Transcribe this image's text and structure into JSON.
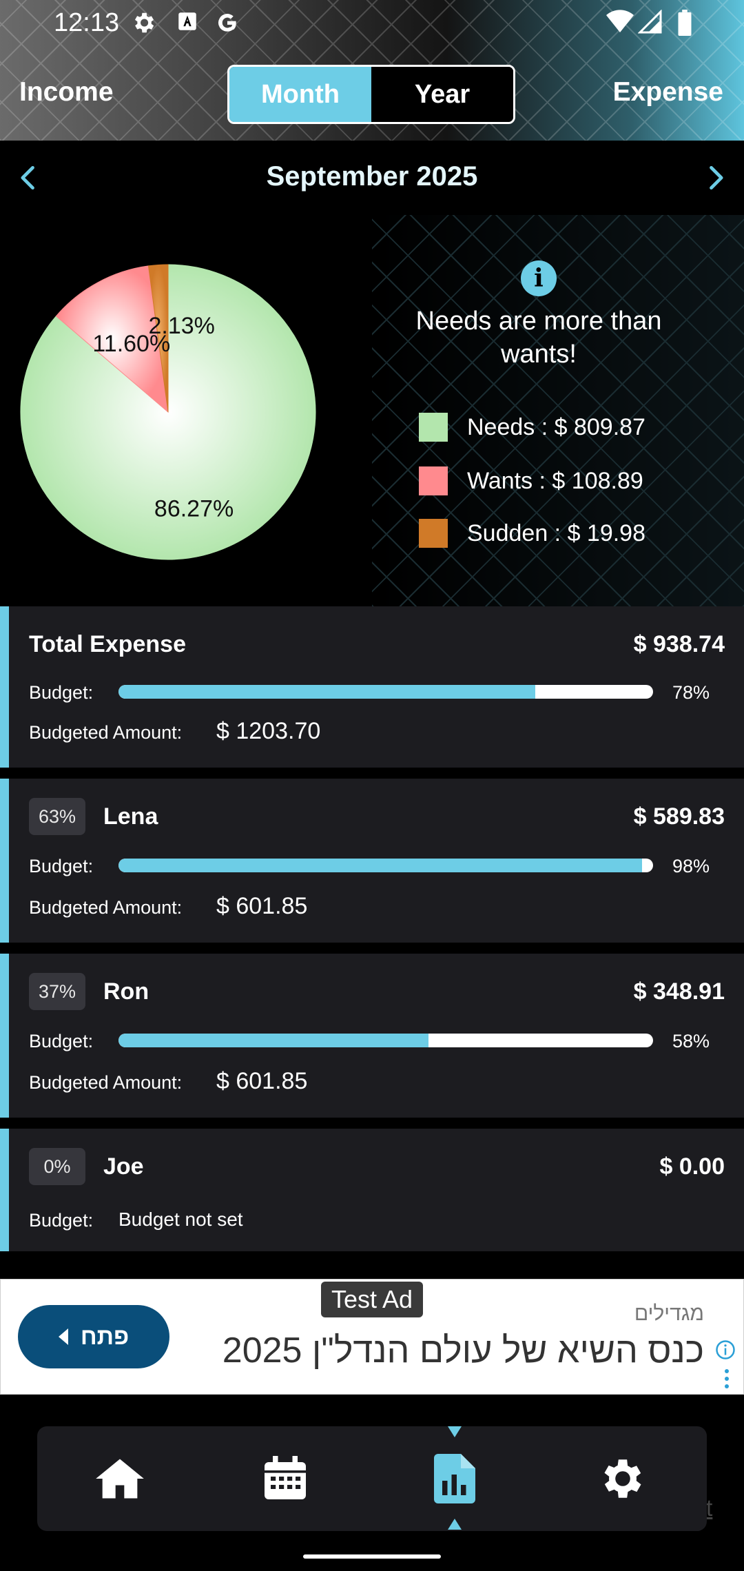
{
  "status_bar": {
    "time": "12:13"
  },
  "header": {
    "income_label": "Income",
    "expense_label": "Expense",
    "toggle": {
      "month": "Month",
      "year": "Year",
      "selected": "Month"
    }
  },
  "period": {
    "label": "September 2025"
  },
  "colors": {
    "accent": "#6dcde6",
    "needs": "#b3e6ad",
    "wants": "#ff8a8e",
    "sudden": "#d07a28"
  },
  "summary": {
    "insight": "Needs are more than wants!",
    "legend": [
      {
        "label": "Needs : $ 809.87",
        "color": "#b3e6ad"
      },
      {
        "label": "Wants : $ 108.89",
        "color": "#ff8a8e"
      },
      {
        "label": "Sudden : $ 19.98",
        "color": "#d07a28"
      }
    ]
  },
  "chart_data": {
    "type": "pie",
    "categories": [
      "Needs",
      "Wants",
      "Sudden"
    ],
    "values": [
      86.27,
      11.6,
      2.13
    ],
    "labels": [
      "86.27%",
      "11.60%",
      "2.13%"
    ],
    "colors": [
      "#b3e6ad",
      "#ff8a8e",
      "#d07a28"
    ]
  },
  "total": {
    "title": "Total Expense",
    "amount": "$ 938.74",
    "budget_label": "Budget:",
    "percent_text": "78%",
    "percent": 0.78,
    "budgeted_label": "Budgeted Amount:",
    "budgeted_amount": "$ 1203.70"
  },
  "members": [
    {
      "badge": "63%",
      "name": "Lena",
      "amount": "$ 589.83",
      "budget_label": "Budget:",
      "percent_text": "98%",
      "percent": 0.98,
      "budgeted_label": "Budgeted Amount:",
      "budgeted_amount": "$ 601.85"
    },
    {
      "badge": "37%",
      "name": "Ron",
      "amount": "$ 348.91",
      "budget_label": "Budget:",
      "percent_text": "58%",
      "percent": 0.58,
      "budgeted_label": "Budgeted Amount:",
      "budgeted_amount": "$ 601.85"
    },
    {
      "badge": "0%",
      "name": "Joe",
      "amount": "$ 0.00",
      "budget_label": "Budget:",
      "budget_status": "Budget not set"
    }
  ],
  "ad": {
    "badge": "Test Ad",
    "button": "פתח",
    "advertiser": "מגדילים",
    "headline": "כנס השיא של עולם הנדל\"ן 2025"
  },
  "nav": {
    "items": [
      {
        "icon": "home-icon"
      },
      {
        "icon": "calendar-icon"
      },
      {
        "icon": "report-icon",
        "selected": true
      },
      {
        "icon": "settings-icon"
      }
    ],
    "peek_text": "et"
  }
}
